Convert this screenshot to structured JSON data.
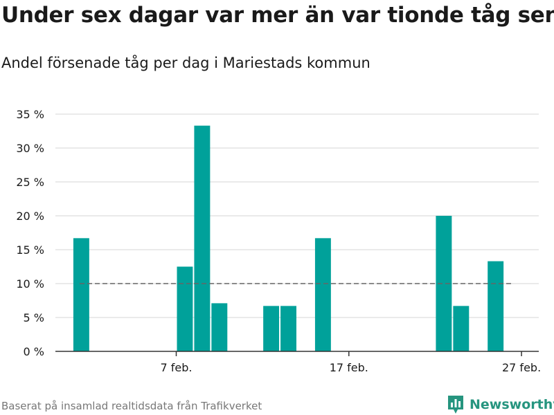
{
  "title": "Under sex dagar var mer än var tionde tåg sent",
  "subtitle": "Andel försenade tåg per dag i Mariestads kommun",
  "source": "Baserat på insamlad realtidsdata från Trafikverket",
  "brand": {
    "name": "Newsworthy",
    "icon": "bar-chart-logo-icon"
  },
  "colors": {
    "bar": "#00a19a",
    "reference_line": "#666666",
    "grid": "#dddddd",
    "axis": "#333333",
    "brand": "#26957f"
  },
  "chart_data": {
    "type": "bar",
    "x_type": "date",
    "x_domain": [
      "2024-01-31",
      "2024-02-28"
    ],
    "x_ticks": [
      {
        "value": "2024-02-07",
        "label": "7 feb."
      },
      {
        "value": "2024-02-17",
        "label": "17 feb."
      },
      {
        "value": "2024-02-27",
        "label": "27 feb."
      }
    ],
    "ylim": [
      0,
      35
    ],
    "y_ticks": [
      {
        "value": 0,
        "label": "0 %"
      },
      {
        "value": 5,
        "label": "5 %"
      },
      {
        "value": 10,
        "label": "10 %"
      },
      {
        "value": 15,
        "label": "15 %"
      },
      {
        "value": 20,
        "label": "20 %"
      },
      {
        "value": 25,
        "label": "25 %"
      },
      {
        "value": 30,
        "label": "30 %"
      },
      {
        "value": 35,
        "label": "35 %"
      }
    ],
    "grid": true,
    "reference_line": {
      "y": 10,
      "style": "dashed"
    },
    "series": [
      {
        "points": [
          {
            "x": "2024-02-01",
            "y": 16.7
          },
          {
            "x": "2024-02-07",
            "y": 12.5
          },
          {
            "x": "2024-02-08",
            "y": 33.3
          },
          {
            "x": "2024-02-09",
            "y": 7.1
          },
          {
            "x": "2024-02-12",
            "y": 6.7
          },
          {
            "x": "2024-02-13",
            "y": 6.7
          },
          {
            "x": "2024-02-15",
            "y": 16.7
          },
          {
            "x": "2024-02-22",
            "y": 20.0
          },
          {
            "x": "2024-02-23",
            "y": 6.7
          },
          {
            "x": "2024-02-25",
            "y": 13.3
          }
        ]
      }
    ]
  }
}
